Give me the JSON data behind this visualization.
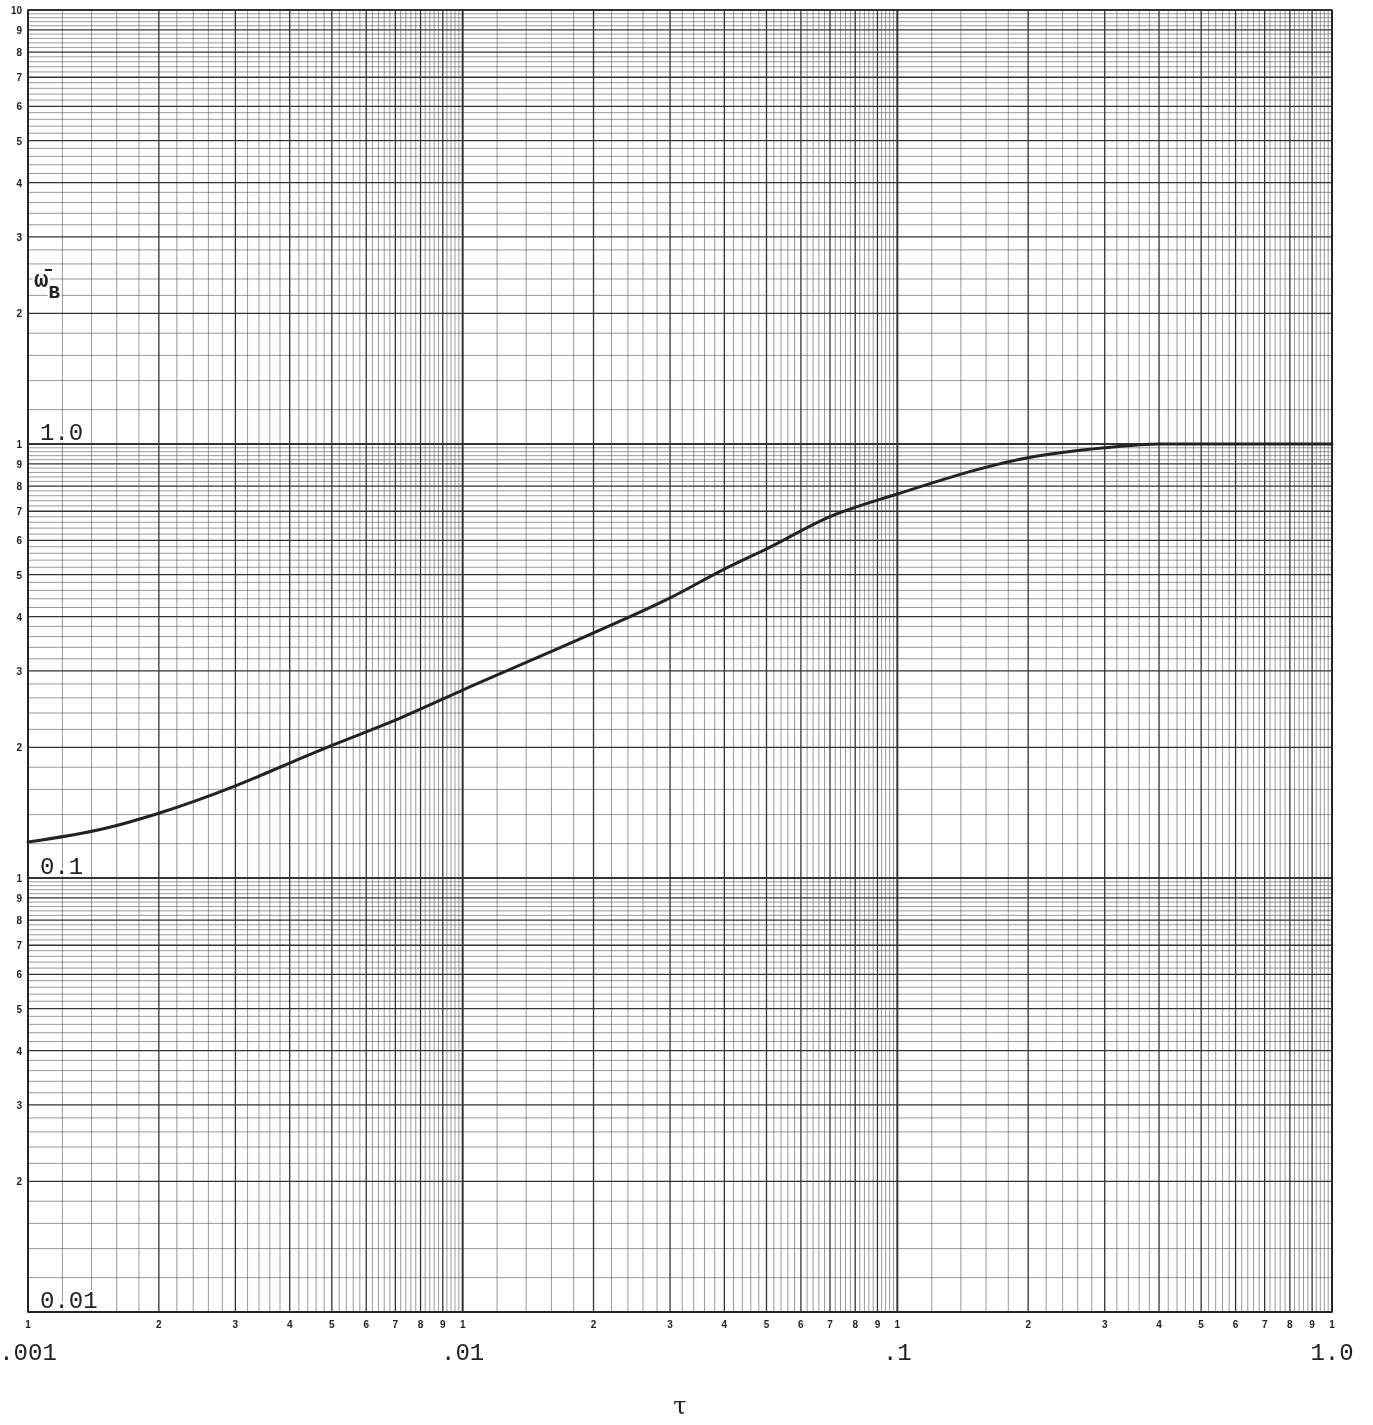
{
  "chart_data": {
    "type": "line",
    "xlabel": "τ",
    "ylabel": "ω̄$_{B}$",
    "log": "xy",
    "grid": true,
    "xlim": [
      0.001,
      1
    ],
    "ylim": [
      0.01,
      10
    ],
    "xticks": [
      {
        "value": 0.001,
        "label": ".001"
      },
      {
        "value": 0.002,
        "label": null
      },
      {
        "value": 0.003,
        "label": null
      },
      {
        "value": 0.004,
        "label": null
      },
      {
        "value": 0.005,
        "label": null
      },
      {
        "value": 0.006,
        "label": null
      },
      {
        "value": 0.007,
        "label": null
      },
      {
        "value": 0.008,
        "label": null
      },
      {
        "value": 0.009,
        "label": null
      },
      {
        "value": 0.01,
        "label": ".01"
      },
      {
        "value": 0.02,
        "label": null
      },
      {
        "value": 0.03,
        "label": null
      },
      {
        "value": 0.04,
        "label": null
      },
      {
        "value": 0.05,
        "label": null
      },
      {
        "value": 0.06,
        "label": null
      },
      {
        "value": 0.07,
        "label": null
      },
      {
        "value": 0.08,
        "label": null
      },
      {
        "value": 0.09,
        "label": null
      },
      {
        "value": 0.1,
        "label": ".1"
      },
      {
        "value": 0.2,
        "label": null
      },
      {
        "value": 0.3,
        "label": null
      },
      {
        "value": 0.4,
        "label": null
      },
      {
        "value": 0.5,
        "label": null
      },
      {
        "value": 0.6,
        "label": null
      },
      {
        "value": 0.7,
        "label": null
      },
      {
        "value": 0.8,
        "label": null
      },
      {
        "value": 0.9,
        "label": null
      },
      {
        "value": 1,
        "label": "1.0"
      }
    ],
    "yticks": [
      {
        "value": 0.01,
        "label": "0.01"
      },
      {
        "value": 0.02,
        "label": null
      },
      {
        "value": 0.03,
        "label": null
      },
      {
        "value": 0.04,
        "label": null
      },
      {
        "value": 0.05,
        "label": null
      },
      {
        "value": 0.06,
        "label": null
      },
      {
        "value": 0.07,
        "label": null
      },
      {
        "value": 0.08,
        "label": null
      },
      {
        "value": 0.09,
        "label": null
      },
      {
        "value": 0.1,
        "label": "0.1"
      },
      {
        "value": 0.2,
        "label": null
      },
      {
        "value": 0.3,
        "label": null
      },
      {
        "value": 0.4,
        "label": null
      },
      {
        "value": 0.5,
        "label": null
      },
      {
        "value": 0.6,
        "label": null
      },
      {
        "value": 0.7,
        "label": null
      },
      {
        "value": 0.8,
        "label": null
      },
      {
        "value": 0.9,
        "label": null
      },
      {
        "value": 1,
        "label": "1.0"
      },
      {
        "value": 2,
        "label": null
      },
      {
        "value": 3,
        "label": null
      },
      {
        "value": 4,
        "label": null
      },
      {
        "value": 5,
        "label": null
      },
      {
        "value": 6,
        "label": null
      },
      {
        "value": 7,
        "label": null
      },
      {
        "value": 8,
        "label": null
      },
      {
        "value": 9,
        "label": null
      },
      {
        "value": 10,
        "label": null
      }
    ],
    "annotations": [
      "1",
      "2",
      "3",
      "4",
      "5",
      "6",
      "7",
      "8",
      "9",
      "1",
      "2",
      "3",
      "4",
      "5",
      "6",
      "7",
      "8",
      "9",
      "1",
      "2",
      "3",
      "4",
      "5",
      "6",
      "7",
      "8",
      "9",
      "1",
      "2",
      "3",
      "4",
      "5",
      "6",
      "7",
      "8",
      "9",
      "1",
      "2",
      "3",
      "4",
      "5",
      "6",
      "7",
      "8",
      "9",
      "1",
      "2",
      "3",
      "4",
      "5",
      "6",
      "7",
      "8",
      "9",
      "10"
    ],
    "x": [
      0.001,
      0.0015,
      0.002,
      0.003,
      0.004,
      0.005,
      0.007,
      0.01,
      0.02,
      0.03,
      0.04,
      0.05,
      0.07,
      0.1,
      0.2,
      0.3,
      0.4,
      1
    ],
    "series": [
      {
        "color": "#222222",
        "values": [
          0.121,
          0.13,
          0.141,
          0.163,
          0.184,
          0.202,
          0.231,
          0.271,
          0.367,
          0.442,
          0.515,
          0.573,
          0.68,
          0.767,
          0.93,
          0.98,
          1.0,
          1.0
        ]
      }
    ]
  }
}
